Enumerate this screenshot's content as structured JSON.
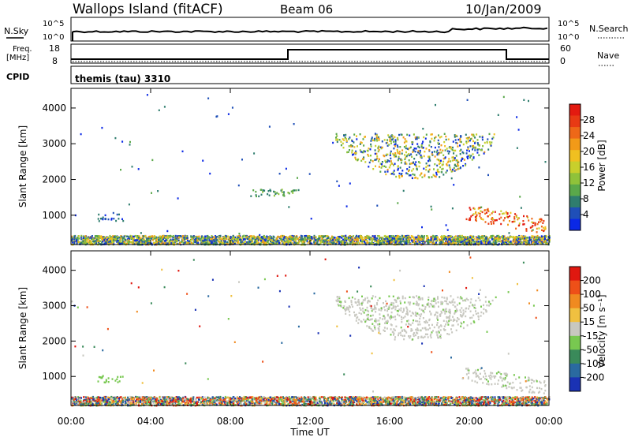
{
  "header": {
    "site": "Wallops Island (fitACF)",
    "beam": "Beam 06",
    "date": "10/Jan/2009"
  },
  "top_panels": {
    "nsky_label": "N.Sky",
    "nsearch_label": "N.Search",
    "nsky_ticks": [
      "10^5",
      "10^0"
    ],
    "nsearch_ticks": [
      "10^5",
      "10^0"
    ],
    "freq_label_line1": "Freq.",
    "freq_label_line2": "[MHz]",
    "freq_ticks": [
      "18",
      "8"
    ],
    "nave_label": "Nave",
    "nave_ticks": [
      "60",
      "0"
    ],
    "cpid_label": "CPID",
    "cpid_text": "themis (tau) 3310"
  },
  "chart_data": [
    {
      "type": "heatmap",
      "name": "power",
      "ylabel": "Slant Range [km]",
      "yticks": [
        1000,
        2000,
        3000,
        4000
      ],
      "ylim": [
        180,
        4550
      ],
      "xlim_hours": [
        0,
        24
      ],
      "colorbar": {
        "label": "Power [dB]",
        "ticks": [
          "4",
          "8",
          "12",
          "16",
          "20",
          "24",
          "28"
        ],
        "colors": [
          "#0a28e6",
          "#1f4fb8",
          "#2f7d6e",
          "#5aa84a",
          "#8fc23a",
          "#c8cf2c",
          "#f0c020",
          "#f29a18",
          "#ee6818",
          "#e83a14",
          "#e31a10"
        ]
      },
      "regions": [
        {
          "t": [
            13.2,
            21.3
          ],
          "range": [
            2050,
            3300
          ],
          "level": "mixed"
        },
        {
          "t": [
            19.8,
            23.8
          ],
          "range": [
            550,
            1300
          ],
          "level": "high"
        },
        {
          "t": [
            9.0,
            11.4
          ],
          "range": [
            1550,
            1750
          ],
          "level": "mid"
        },
        {
          "t": [
            1.3,
            2.6
          ],
          "range": [
            850,
            1050
          ],
          "level": "low"
        },
        {
          "t": [
            0,
            24
          ],
          "range": [
            200,
            450
          ],
          "level": "mixed"
        }
      ]
    },
    {
      "type": "heatmap",
      "name": "velocity",
      "ylabel": "Slant Range [km]",
      "yticks": [
        1000,
        2000,
        3000,
        4000
      ],
      "ylim": [
        180,
        4550
      ],
      "xlim_hours": [
        0,
        24
      ],
      "xlabel": "Time UT",
      "xticks": [
        "00:00",
        "04:00",
        "08:00",
        "12:00",
        "16:00",
        "20:00",
        "00:00"
      ],
      "colorbar": {
        "label": "Velocity [m s⁻¹]",
        "ticks": [
          "200",
          "100",
          "50",
          "15",
          "-15",
          "-50",
          "-100",
          "-200"
        ],
        "colors": [
          "#1a32b4",
          "#2a6aa0",
          "#3a8a5a",
          "#78c850",
          "#c8c8c0",
          "#f0c040",
          "#f08a20",
          "#ee5018",
          "#e01810"
        ]
      },
      "regions": [
        {
          "t": [
            13.2,
            21.3
          ],
          "range": [
            2050,
            3300
          ],
          "level": "ground"
        },
        {
          "t": [
            19.8,
            23.8
          ],
          "range": [
            550,
            1300
          ],
          "level": "ground"
        },
        {
          "t": [
            1.3,
            2.6
          ],
          "range": [
            850,
            1050
          ],
          "level": "green"
        },
        {
          "t": [
            0,
            24
          ],
          "range": [
            200,
            450
          ],
          "level": "mixed"
        }
      ]
    }
  ]
}
